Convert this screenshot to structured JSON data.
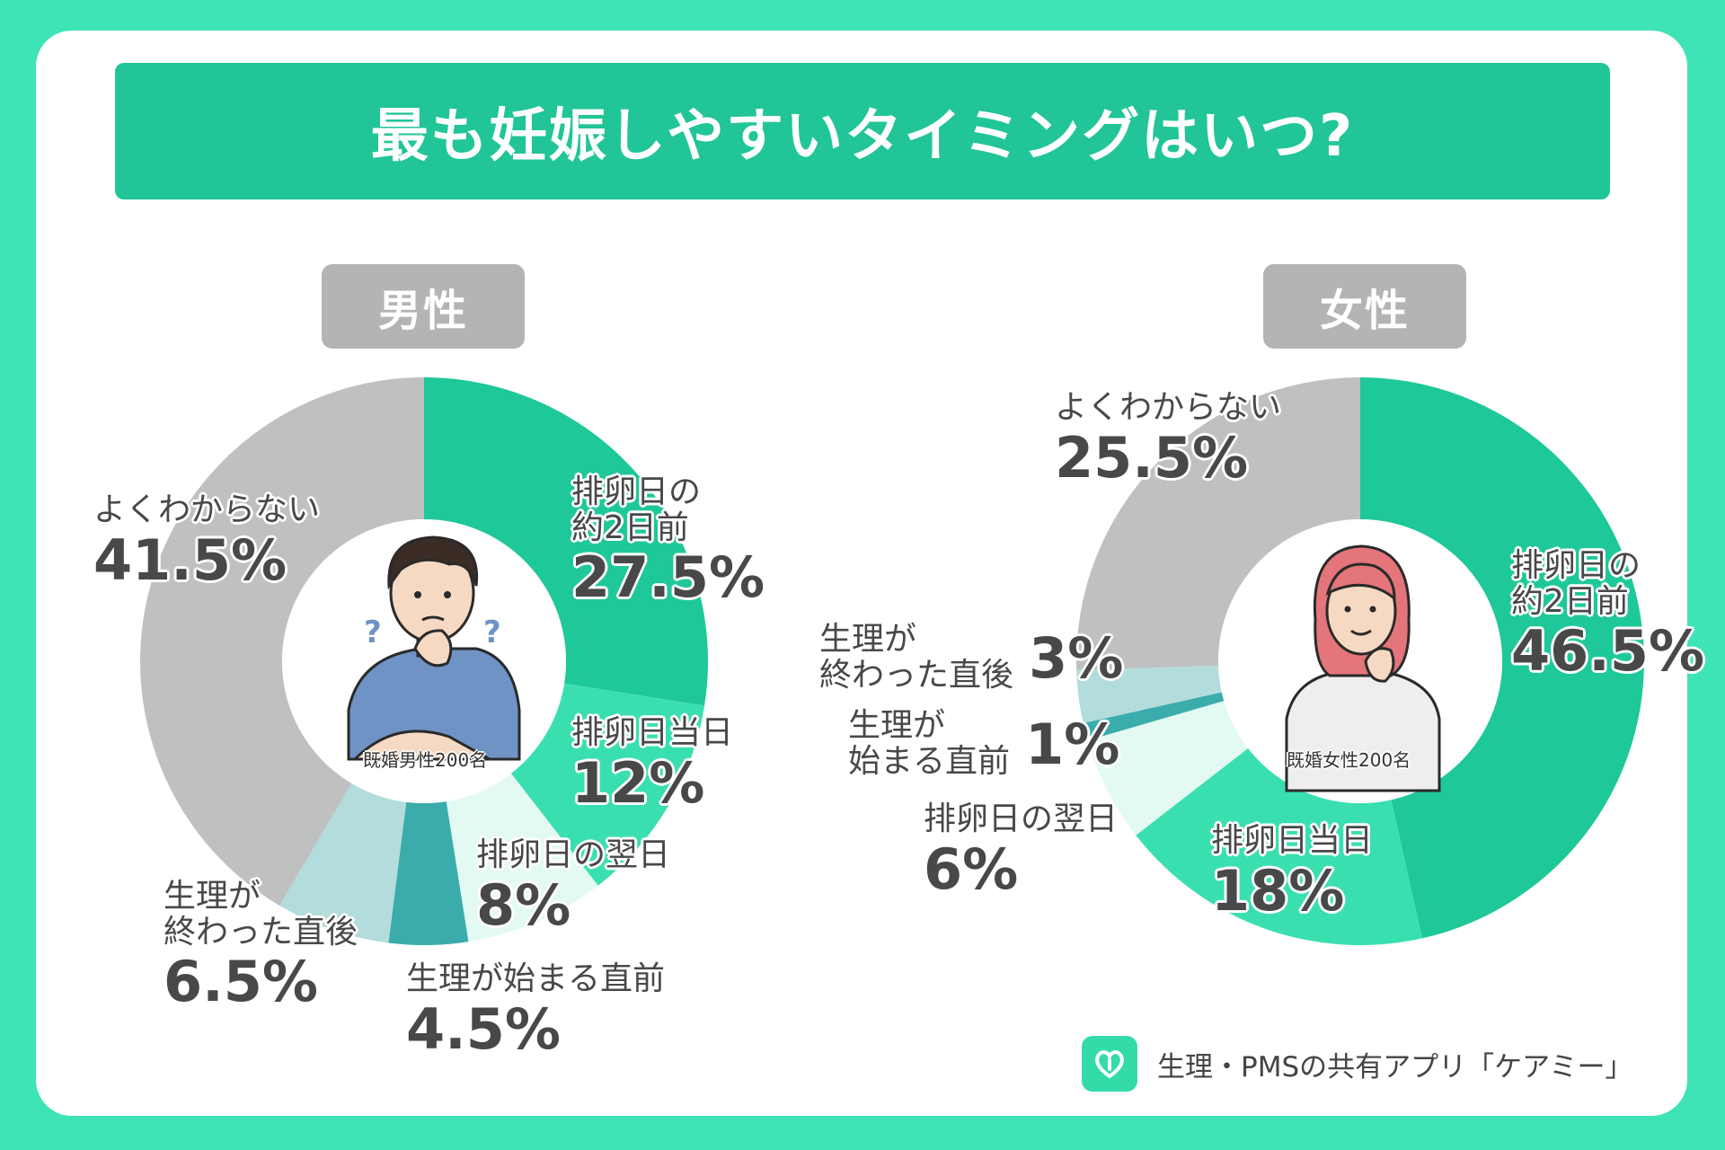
{
  "title": "最も妊娠しやすいタイミングはいつ?",
  "brand": {
    "text": "生理・PMSの共有アプリ「ケアミー」",
    "icon": "heart-logo-icon"
  },
  "colors": {
    "background": "#3ee3b6",
    "banner": "#21c597",
    "tag": "#b3b5b5",
    "slices": {
      "before_ovulation": "#1ec898",
      "ovulation_day": "#3adfb0",
      "day_after": "#e3faf3",
      "before_period": "#3aacab",
      "after_period": "#b3dcdc",
      "unknown": "#bfc1c1"
    }
  },
  "chart_data": [
    {
      "type": "pie",
      "panel": "男性",
      "sample": "既婚男性200名",
      "slices": [
        {
          "key": "before_ovulation",
          "label": "排卵日の\n約2日前",
          "value": 27.5,
          "display": "27.5%"
        },
        {
          "key": "ovulation_day",
          "label": "排卵日当日",
          "value": 12,
          "display": "12%"
        },
        {
          "key": "day_after",
          "label": "排卵日の翌日",
          "value": 8,
          "display": "8%"
        },
        {
          "key": "before_period",
          "label": "生理が始まる直前",
          "value": 4.5,
          "display": "4.5%"
        },
        {
          "key": "after_period",
          "label": "生理が\n終わった直後",
          "value": 6.5,
          "display": "6.5%"
        },
        {
          "key": "unknown",
          "label": "よくわからない",
          "value": 41.5,
          "display": "41.5%"
        }
      ]
    },
    {
      "type": "pie",
      "panel": "女性",
      "sample": "既婚女性200名",
      "slices": [
        {
          "key": "before_ovulation",
          "label": "排卵日の\n約2日前",
          "value": 46.5,
          "display": "46.5%"
        },
        {
          "key": "ovulation_day",
          "label": "排卵日当日",
          "value": 18,
          "display": "18%"
        },
        {
          "key": "day_after",
          "label": "排卵日の翌日",
          "value": 6,
          "display": "6%"
        },
        {
          "key": "before_period",
          "label": "生理が\n始まる直前",
          "value": 1,
          "display": "1%"
        },
        {
          "key": "after_period",
          "label": "生理が\n終わった直後",
          "value": 3,
          "display": "3%"
        },
        {
          "key": "unknown",
          "label": "よくわからない",
          "value": 25.5,
          "display": "25.5%"
        }
      ]
    }
  ]
}
